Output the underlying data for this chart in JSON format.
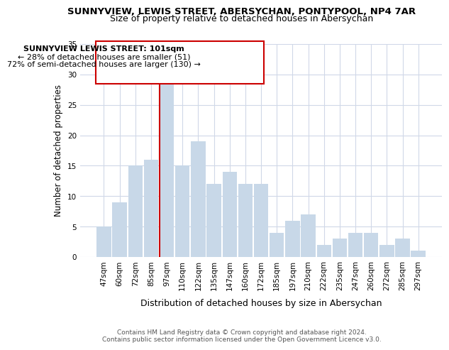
{
  "title": "SUNNYVIEW, LEWIS STREET, ABERSYCHAN, PONTYPOOL, NP4 7AR",
  "subtitle": "Size of property relative to detached houses in Abersychan",
  "xlabel": "Distribution of detached houses by size in Abersychan",
  "ylabel": "Number of detached properties",
  "categories": [
    "47sqm",
    "60sqm",
    "72sqm",
    "85sqm",
    "97sqm",
    "110sqm",
    "122sqm",
    "135sqm",
    "147sqm",
    "160sqm",
    "172sqm",
    "185sqm",
    "197sqm",
    "210sqm",
    "222sqm",
    "235sqm",
    "247sqm",
    "260sqm",
    "272sqm",
    "285sqm",
    "297sqm"
  ],
  "values": [
    5,
    9,
    15,
    16,
    29,
    15,
    19,
    12,
    14,
    12,
    12,
    4,
    6,
    7,
    2,
    3,
    4,
    4,
    2,
    3,
    1
  ],
  "highlight_index": 4,
  "bar_color": "#c8d8e8",
  "highlight_edge_color": "#cc0000",
  "ylim": [
    0,
    35
  ],
  "yticks": [
    0,
    5,
    10,
    15,
    20,
    25,
    30,
    35
  ],
  "annotation_title": "SUNNYVIEW LEWIS STREET: 101sqm",
  "annotation_line1": "← 28% of detached houses are smaller (51)",
  "annotation_line2": "72% of semi-detached houses are larger (130) →",
  "footer_line1": "Contains HM Land Registry data © Crown copyright and database right 2024.",
  "footer_line2": "Contains public sector information licensed under the Open Government Licence v3.0.",
  "background_color": "#ffffff",
  "grid_color": "#d0d8e8"
}
